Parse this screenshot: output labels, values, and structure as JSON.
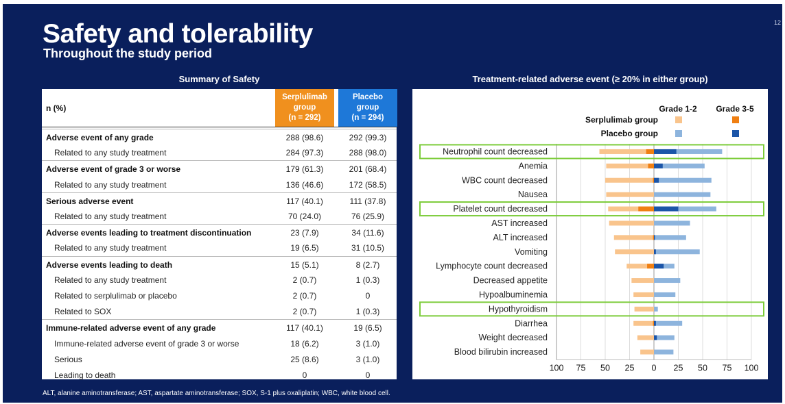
{
  "slide": {
    "title": "Safety and tolerability",
    "subtitle": "Throughout the study period",
    "page_number": "12",
    "footnote": "ALT, alanine aminotransferase; AST, aspartate aminotransferase; SOX, S-1 plus oxaliplatin; WBC, white blood cell."
  },
  "table": {
    "section_title": "Summary of Safety",
    "header_label": "n (%)",
    "col1": {
      "line1": "Serplulimab",
      "line2": "group",
      "line3": "(n = 292)",
      "color": "#f0901e"
    },
    "col2": {
      "line1": "Placebo",
      "line2": "group",
      "line3": "(n = 294)",
      "color": "#1e78d8"
    },
    "rows": [
      {
        "label": "Adverse event of any grade",
        "bold": true,
        "v1": "288 (98.6)",
        "v2": "292 (99.3)"
      },
      {
        "label": "Related to any study treatment",
        "bold": false,
        "v1": "284 (97.3)",
        "v2": "288 (98.0)"
      },
      {
        "label": "Adverse event of grade 3 or worse",
        "bold": true,
        "v1": "179 (61.3)",
        "v2": "201 (68.4)"
      },
      {
        "label": "Related to any study treatment",
        "bold": false,
        "v1": "136 (46.6)",
        "v2": "172 (58.5)"
      },
      {
        "label": "Serious adverse event",
        "bold": true,
        "v1": "117 (40.1)",
        "v2": "111 (37.8)"
      },
      {
        "label": "Related to any study treatment",
        "bold": false,
        "v1": "70 (24.0)",
        "v2": "76 (25.9)"
      },
      {
        "label": "Adverse events leading to treatment discontinuation",
        "bold": true,
        "v1": "23 (7.9)",
        "v2": "34 (11.6)"
      },
      {
        "label": "Related to any study treatment",
        "bold": false,
        "v1": "19 (6.5)",
        "v2": "31 (10.5)"
      },
      {
        "label": "Adverse events leading to death",
        "bold": true,
        "v1": "15 (5.1)",
        "v2": "8 (2.7)"
      },
      {
        "label": "Related to any study treatment",
        "bold": false,
        "v1": "2 (0.7)",
        "v2": "1 (0.3)"
      },
      {
        "label": "Related to serplulimab or placebo",
        "bold": false,
        "v1": "2 (0.7)",
        "v2": "0"
      },
      {
        "label": "Related to SOX",
        "bold": false,
        "v1": "2 (0.7)",
        "v2": "1 (0.3)"
      },
      {
        "label": "Immune-related adverse event of any grade",
        "bold": true,
        "v1": "117 (40.1)",
        "v2": "19 (6.5)"
      },
      {
        "label": "Immune-related adverse event of grade 3 or worse",
        "bold": false,
        "v1": "18 (6.2)",
        "v2": "3 (1.0)"
      },
      {
        "label": "Serious",
        "bold": false,
        "v1": "25 (8.6)",
        "v2": "3 (1.0)"
      },
      {
        "label": "Leading to death",
        "bold": false,
        "v1": "0",
        "v2": "0"
      }
    ]
  },
  "chart_data": {
    "type": "bar",
    "orientation": "horizontal-butterfly",
    "title": "Treatment-related adverse event (≥ 20% in either group)",
    "legend": {
      "col_labels": [
        "Grade 1-2",
        "Grade 3-5"
      ],
      "rows": [
        {
          "name": "Serplulimab group",
          "colors": [
            "#f9c48c",
            "#f07f12"
          ]
        },
        {
          "name": "Placebo group",
          "colors": [
            "#8db4dd",
            "#1b55a8"
          ]
        }
      ]
    },
    "categories": [
      "Neutrophil count decreased",
      "Anemia",
      "WBC count decreased",
      "Nausea",
      "Platelet count decreased",
      "AST increased",
      "ALT increased",
      "Vomiting",
      "Lymphocyte count decreased",
      "Decreased appetite",
      "Hypoalbuminemia",
      "Hypothyroidism",
      "Diarrhea",
      "Weight decreased",
      "Blood bilirubin increased"
    ],
    "highlighted": [
      "Neutrophil count decreased",
      "Platelet count decreased",
      "Hypothyroidism"
    ],
    "series": [
      {
        "name": "Serplulimab group Grade 1-2",
        "side": "left",
        "values": [
          48,
          43,
          49,
          49,
          31,
          46,
          40,
          40,
          21,
          23,
          21,
          20,
          20,
          17,
          14
        ]
      },
      {
        "name": "Serplulimab group Grade 3-5",
        "side": "left",
        "values": [
          8,
          6,
          1,
          0,
          16,
          0,
          1,
          0,
          7,
          0,
          0,
          0,
          1,
          0,
          0
        ]
      },
      {
        "name": "Placebo group Grade 1-2",
        "side": "right",
        "values": [
          47,
          43,
          54,
          58,
          39,
          37,
          32,
          45,
          11,
          27,
          22,
          4,
          27,
          18,
          20
        ]
      },
      {
        "name": "Placebo group Grade 3-5",
        "side": "right",
        "values": [
          23,
          9,
          5,
          0,
          25,
          0,
          1,
          2,
          10,
          0,
          0,
          0,
          2,
          3,
          0
        ]
      }
    ],
    "xlim": [
      -100,
      100
    ],
    "xticks": [
      "100",
      "75",
      "50",
      "25",
      "0",
      "25",
      "50",
      "75",
      "100"
    ],
    "xtick_values": [
      -100,
      -75,
      -50,
      -25,
      0,
      25,
      50,
      75,
      100
    ],
    "grid": true
  }
}
